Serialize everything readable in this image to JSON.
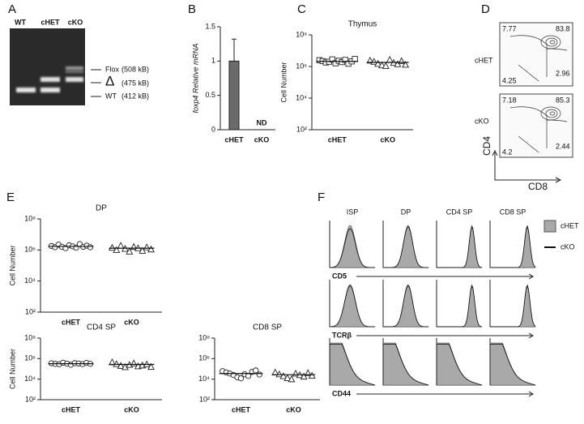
{
  "panel_labels": [
    "A",
    "B",
    "C",
    "D",
    "E",
    "F"
  ],
  "gel": {
    "lanes": [
      "WT",
      "cHET",
      "cKO"
    ],
    "bands": [
      {
        "name": "Flox",
        "size": "(508 kB)"
      },
      {
        "name": "Δ",
        "size": "(475 kB)"
      },
      {
        "name": "WT",
        "size": "(412 kB)"
      }
    ]
  },
  "chart_data": [
    {
      "type": "bar",
      "y_label": "foxp4 Relative mRNA",
      "categories": [
        "cHET",
        "cKO"
      ],
      "values": [
        1,
        null
      ],
      "errors": [
        0.32,
        null
      ],
      "value_labels": [
        null,
        "ND"
      ],
      "color": "#6b6b6b",
      "ylim": [
        0,
        1.5
      ],
      "yticks": [
        0,
        0.5,
        1,
        1.5
      ]
    },
    {
      "type": "strip",
      "title": "Thymus",
      "y_label": "Cell Number",
      "log_scale": true,
      "categories": [
        "cHET",
        "cKO"
      ],
      "markers": [
        "square",
        "triangle"
      ],
      "values": [
        [
          2500000,
          2200000,
          1800000,
          2000000,
          2800000,
          1600000,
          2300000,
          1900000,
          2600000,
          1500000,
          2100000,
          3000000
        ],
        [
          2400000,
          2000000,
          1500000,
          1200000,
          1100000,
          2700000,
          1700000,
          1400000,
          2200000,
          1300000
        ]
      ],
      "means": [
        2100000,
        1800000
      ],
      "ylim": [
        100,
        100000000
      ],
      "yticks": [
        {
          "value": 100,
          "label": "10²"
        },
        {
          "value": 10000,
          "label": "10⁴"
        },
        {
          "value": 1000000,
          "label": "10⁶"
        },
        {
          "value": 100000000,
          "label": "10⁸"
        }
      ]
    },
    {
      "type": "strip",
      "title": "DP",
      "y_label": "Cell Number",
      "log_scale": true,
      "categories": [
        "cHET",
        "cKO"
      ],
      "markers": [
        "circle",
        "triangle"
      ],
      "values": [
        [
          1800000,
          1500000,
          2200000,
          1600000,
          1300000,
          2000000,
          1700000,
          1400000,
          2400000,
          1600000,
          1900000,
          1500000
        ],
        [
          1400000,
          1000000,
          1900000,
          1200000,
          800000,
          1600000,
          1300000,
          900000,
          1500000,
          1100000
        ]
      ],
      "means": [
        1700000,
        1300000
      ],
      "ylim": [
        100,
        100000000
      ],
      "yticks": [
        {
          "value": 100,
          "label": "10²"
        },
        {
          "value": 10000,
          "label": "10⁴"
        },
        {
          "value": 1000000,
          "label": "10⁶"
        },
        {
          "value": 100000000,
          "label": "10⁸"
        }
      ]
    },
    {
      "type": "strip",
      "title": "CD4 SP",
      "y_label": "Cell Number",
      "log_scale": true,
      "categories": [
        "cHET",
        "cKO"
      ],
      "markers": [
        "circle",
        "triangle"
      ],
      "values": [
        [
          350000,
          300000,
          280000,
          400000,
          320000,
          250000,
          360000,
          330000,
          290000,
          380000,
          310000
        ],
        [
          450000,
          300000,
          200000,
          150000,
          250000,
          350000,
          180000,
          220000,
          280000,
          160000
        ]
      ],
      "means": [
        320000,
        270000
      ],
      "ylim": [
        100,
        100000000
      ],
      "yticks": [
        {
          "value": 100,
          "label": "10²"
        },
        {
          "value": 10000,
          "label": "10⁴"
        },
        {
          "value": 1000000,
          "label": "10⁶"
        },
        {
          "value": 100000000,
          "label": "10⁸"
        }
      ]
    },
    {
      "type": "strip",
      "title": "CD8 SP",
      "log_scale": true,
      "categories": [
        "cHET",
        "cKO"
      ],
      "markers": [
        "circle",
        "triangle"
      ],
      "values": [
        [
          60000,
          45000,
          35000,
          25000,
          15000,
          12000,
          30000,
          20000,
          50000,
          70000,
          28000
        ],
        [
          45000,
          30000,
          20000,
          13000,
          10000,
          35000,
          25000,
          18000,
          40000,
          22000
        ]
      ],
      "means": [
        35000,
        27000
      ],
      "ylim": [
        100,
        100000000
      ],
      "yticks": [
        {
          "value": 100,
          "label": "10²"
        },
        {
          "value": 10000,
          "label": "10⁴"
        },
        {
          "value": 1000000,
          "label": "10⁶"
        },
        {
          "value": 100000000,
          "label": "10⁸"
        }
      ]
    }
  ],
  "flow": {
    "groups": [
      {
        "label": "cHET",
        "quadrants": [
          "7.77",
          "83.8",
          "2.96",
          "4.25"
        ]
      },
      {
        "label": "cKO",
        "quadrants": [
          "7.18",
          "85.3",
          "2.44",
          "4.2"
        ]
      }
    ],
    "y_label": "CD4",
    "x_label": "CD8"
  },
  "histograms": {
    "columns": [
      "ISP",
      "DP",
      "CD4 SP",
      "CD8 SP"
    ],
    "rows": [
      "CD5",
      "TCRβ",
      "CD44"
    ],
    "legend": [
      "cHET",
      "cKO"
    ]
  }
}
